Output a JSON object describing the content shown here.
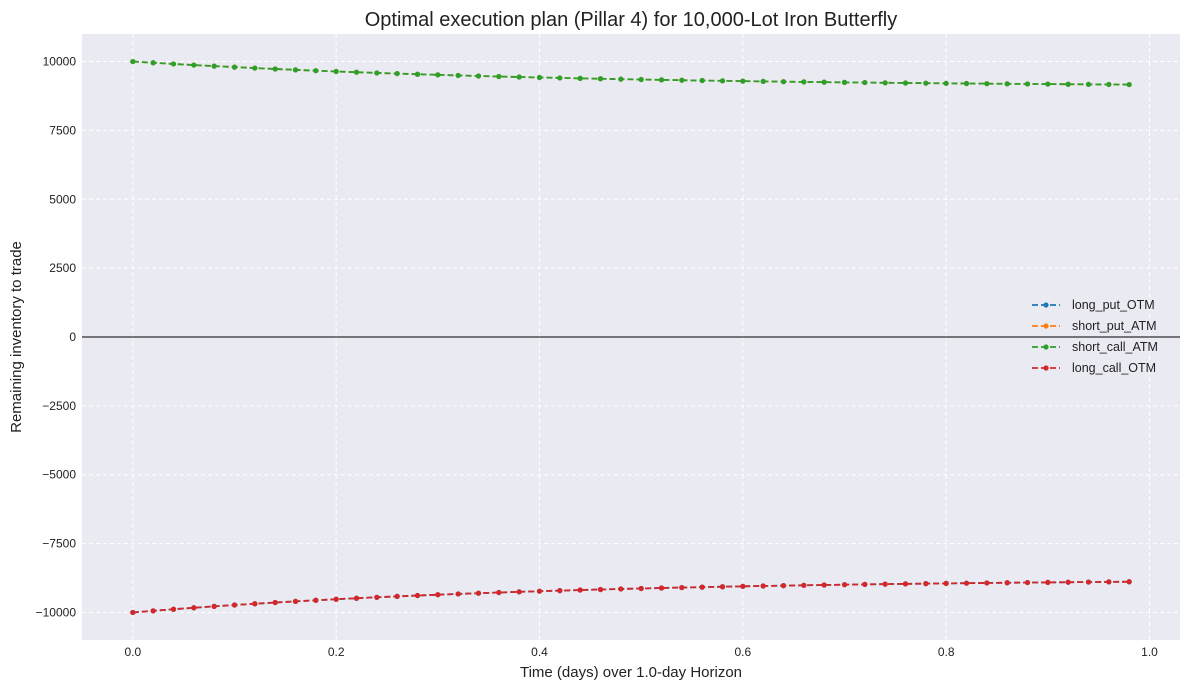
{
  "chart_data": {
    "type": "line",
    "title": "Optimal execution plan (Pillar 4) for 10,000-Lot Iron Butterfly",
    "xlabel": "Time (days) over 1.0-day Horizon",
    "ylabel": "Remaining inventory to trade",
    "xlim": [
      -0.05,
      1.03
    ],
    "ylim": [
      -11000,
      11000
    ],
    "x_ticks": [
      0.0,
      0.2,
      0.4,
      0.6,
      0.8,
      1.0
    ],
    "x_tick_labels": [
      "0.0",
      "0.2",
      "0.4",
      "0.6",
      "0.8",
      "1.0"
    ],
    "y_ticks": [
      10000,
      7500,
      5000,
      2500,
      0,
      -2500,
      -5000,
      -7500,
      -10000
    ],
    "y_tick_labels": [
      "10000",
      "7500",
      "5000",
      "2500",
      "0",
      "−2500",
      "−5000",
      "−7500",
      "−10000"
    ],
    "grid": true,
    "zero_line": true,
    "legend_position": "center-right",
    "time_horizon_days": 1.0,
    "step_days": 0.02,
    "num_steps": 50,
    "series": [
      {
        "name": "long_put_OTM",
        "color": "#1f77b4",
        "start": -10000,
        "end": -8880,
        "decay": 2.5
      },
      {
        "name": "short_put_ATM",
        "color": "#ff7f0e",
        "start": 10000,
        "end": 9160,
        "decay": 2.5
      },
      {
        "name": "short_call_ATM",
        "color": "#2ca02c",
        "start": 10000,
        "end": 9160,
        "decay": 2.5
      },
      {
        "name": "long_call_OTM",
        "color": "#d62728",
        "start": -10000,
        "end": -8880,
        "decay": 2.5
      }
    ]
  }
}
